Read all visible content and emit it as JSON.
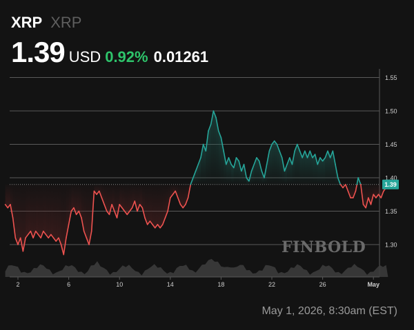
{
  "header": {
    "symbol": "XRP",
    "name": "XRP",
    "price": "1.39",
    "currency": "USD",
    "change_pct": "0.92%",
    "change_abs": "0.01261"
  },
  "watermark": "FINBOLD",
  "timestamp": "May 1, 2026, 8:30am (EST)",
  "colors": {
    "up": "#26a69a",
    "down": "#ef5350",
    "positive_text": "#2ec46b",
    "background": "#131313"
  },
  "chart_data": {
    "type": "line",
    "title": "",
    "xlabel": "",
    "ylabel": "",
    "ylim": [
      1.255,
      1.565
    ],
    "y_ticks": [
      "1.30",
      "1.35",
      "1.40",
      "1.45",
      "1.50",
      "1.55"
    ],
    "x_ticks": [
      {
        "day": 2,
        "label": "2"
      },
      {
        "day": 6,
        "label": "6"
      },
      {
        "day": 10,
        "label": "10"
      },
      {
        "day": 14,
        "label": "14"
      },
      {
        "day": 18,
        "label": "18"
      },
      {
        "day": 22,
        "label": "22"
      },
      {
        "day": 26,
        "label": "26"
      },
      {
        "day": 30,
        "label": "May"
      }
    ],
    "reference_price": 1.39,
    "current_price_label": "1.39",
    "grid": true,
    "series": [
      {
        "values": [
          [
            1.0,
            1.36
          ],
          [
            1.2,
            1.355
          ],
          [
            1.4,
            1.36
          ],
          [
            1.6,
            1.34
          ],
          [
            1.8,
            1.31
          ],
          [
            2.0,
            1.3
          ],
          [
            2.2,
            1.31
          ],
          [
            2.4,
            1.29
          ],
          [
            2.6,
            1.31
          ],
          [
            2.8,
            1.315
          ],
          [
            3.0,
            1.32
          ],
          [
            3.2,
            1.31
          ],
          [
            3.4,
            1.32
          ],
          [
            3.6,
            1.315
          ],
          [
            3.8,
            1.31
          ],
          [
            4.0,
            1.32
          ],
          [
            4.2,
            1.315
          ],
          [
            4.4,
            1.31
          ],
          [
            4.6,
            1.315
          ],
          [
            4.8,
            1.31
          ],
          [
            5.0,
            1.305
          ],
          [
            5.2,
            1.31
          ],
          [
            5.4,
            1.3
          ],
          [
            5.6,
            1.285
          ],
          [
            5.8,
            1.31
          ],
          [
            6.0,
            1.33
          ],
          [
            6.2,
            1.35
          ],
          [
            6.4,
            1.355
          ],
          [
            6.6,
            1.345
          ],
          [
            6.8,
            1.35
          ],
          [
            7.0,
            1.34
          ],
          [
            7.2,
            1.32
          ],
          [
            7.4,
            1.31
          ],
          [
            7.6,
            1.3
          ],
          [
            7.8,
            1.32
          ],
          [
            8.0,
            1.38
          ],
          [
            8.2,
            1.375
          ],
          [
            8.4,
            1.38
          ],
          [
            8.6,
            1.37
          ],
          [
            8.8,
            1.36
          ],
          [
            9.0,
            1.35
          ],
          [
            9.2,
            1.345
          ],
          [
            9.4,
            1.36
          ],
          [
            9.6,
            1.35
          ],
          [
            9.8,
            1.34
          ],
          [
            10.0,
            1.36
          ],
          [
            10.2,
            1.355
          ],
          [
            10.4,
            1.35
          ],
          [
            10.6,
            1.345
          ],
          [
            10.8,
            1.35
          ],
          [
            11.0,
            1.355
          ],
          [
            11.2,
            1.365
          ],
          [
            11.4,
            1.35
          ],
          [
            11.6,
            1.36
          ],
          [
            11.8,
            1.355
          ],
          [
            12.0,
            1.34
          ],
          [
            12.2,
            1.33
          ],
          [
            12.4,
            1.335
          ],
          [
            12.6,
            1.33
          ],
          [
            12.8,
            1.325
          ],
          [
            13.0,
            1.33
          ],
          [
            13.2,
            1.325
          ],
          [
            13.4,
            1.33
          ],
          [
            13.6,
            1.34
          ],
          [
            13.8,
            1.35
          ],
          [
            14.0,
            1.37
          ],
          [
            14.2,
            1.375
          ],
          [
            14.4,
            1.38
          ],
          [
            14.6,
            1.37
          ],
          [
            14.8,
            1.36
          ],
          [
            15.0,
            1.355
          ],
          [
            15.2,
            1.36
          ],
          [
            15.4,
            1.37
          ],
          [
            15.6,
            1.39
          ],
          [
            15.8,
            1.4
          ],
          [
            16.0,
            1.41
          ],
          [
            16.2,
            1.42
          ],
          [
            16.4,
            1.43
          ],
          [
            16.6,
            1.45
          ],
          [
            16.8,
            1.44
          ],
          [
            17.0,
            1.47
          ],
          [
            17.2,
            1.48
          ],
          [
            17.4,
            1.5
          ],
          [
            17.6,
            1.49
          ],
          [
            17.8,
            1.47
          ],
          [
            18.0,
            1.46
          ],
          [
            18.2,
            1.44
          ],
          [
            18.4,
            1.42
          ],
          [
            18.6,
            1.43
          ],
          [
            18.8,
            1.42
          ],
          [
            19.0,
            1.415
          ],
          [
            19.2,
            1.43
          ],
          [
            19.4,
            1.425
          ],
          [
            19.6,
            1.41
          ],
          [
            19.8,
            1.42
          ],
          [
            20.0,
            1.4
          ],
          [
            20.2,
            1.395
          ],
          [
            20.4,
            1.41
          ],
          [
            20.6,
            1.42
          ],
          [
            20.8,
            1.43
          ],
          [
            21.0,
            1.425
          ],
          [
            21.2,
            1.41
          ],
          [
            21.4,
            1.4
          ],
          [
            21.6,
            1.42
          ],
          [
            21.8,
            1.44
          ],
          [
            22.0,
            1.45
          ],
          [
            22.2,
            1.455
          ],
          [
            22.4,
            1.45
          ],
          [
            22.6,
            1.44
          ],
          [
            22.8,
            1.43
          ],
          [
            23.0,
            1.41
          ],
          [
            23.2,
            1.42
          ],
          [
            23.4,
            1.43
          ],
          [
            23.6,
            1.42
          ],
          [
            23.8,
            1.44
          ],
          [
            24.0,
            1.45
          ],
          [
            24.2,
            1.44
          ],
          [
            24.4,
            1.43
          ],
          [
            24.6,
            1.44
          ],
          [
            24.8,
            1.43
          ],
          [
            25.0,
            1.44
          ],
          [
            25.2,
            1.43
          ],
          [
            25.4,
            1.435
          ],
          [
            25.6,
            1.42
          ],
          [
            25.8,
            1.43
          ],
          [
            26.0,
            1.425
          ],
          [
            26.2,
            1.43
          ],
          [
            26.4,
            1.44
          ],
          [
            26.6,
            1.43
          ],
          [
            26.8,
            1.44
          ],
          [
            27.0,
            1.42
          ],
          [
            27.2,
            1.4
          ],
          [
            27.4,
            1.39
          ],
          [
            27.6,
            1.385
          ],
          [
            27.8,
            1.39
          ],
          [
            28.0,
            1.38
          ],
          [
            28.2,
            1.37
          ],
          [
            28.4,
            1.37
          ],
          [
            28.6,
            1.38
          ],
          [
            28.8,
            1.4
          ],
          [
            29.0,
            1.39
          ],
          [
            29.2,
            1.36
          ],
          [
            29.4,
            1.355
          ],
          [
            29.6,
            1.37
          ],
          [
            29.8,
            1.36
          ],
          [
            30.0,
            1.375
          ],
          [
            30.2,
            1.37
          ],
          [
            30.4,
            1.375
          ],
          [
            30.6,
            1.37
          ],
          [
            30.8,
            1.38
          ],
          [
            31.0,
            1.385
          ],
          [
            31.15,
            1.39
          ]
        ]
      }
    ]
  }
}
